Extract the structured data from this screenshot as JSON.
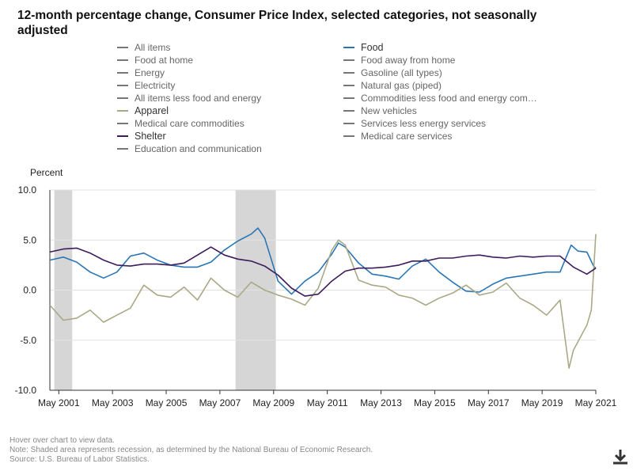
{
  "title": "12-month percentage change, Consumer Price Index, selected categories, not seasonally adjusted",
  "legend": {
    "left": [
      {
        "label": "All items",
        "active": false
      },
      {
        "label": "Food at home",
        "active": false
      },
      {
        "label": "Energy",
        "active": false
      },
      {
        "label": "Electricity",
        "active": false
      },
      {
        "label": "All items less food and energy",
        "active": false
      },
      {
        "label": "Apparel",
        "active": true,
        "color": "#a9a986"
      },
      {
        "label": "Medical care commodities",
        "active": false
      },
      {
        "label": "Shelter",
        "active": true,
        "color": "#3d1b5c"
      },
      {
        "label": "Education and communication",
        "active": false
      }
    ],
    "right": [
      {
        "label": "Food",
        "active": true,
        "color": "#2a76b5"
      },
      {
        "label": "Food away from home",
        "active": false
      },
      {
        "label": "Gasoline (all types)",
        "active": false
      },
      {
        "label": "Natural gas (piped)",
        "active": false
      },
      {
        "label": "Commodities less food and energy com…",
        "active": false
      },
      {
        "label": "New vehicles",
        "active": false
      },
      {
        "label": "Services less energy services",
        "active": false
      },
      {
        "label": "Medical care services",
        "active": false
      }
    ]
  },
  "footnotes": {
    "hover": "Hover over chart to view data.",
    "note": "Note: Shaded area represents recession, as determined by the National Bureau of Economic Research.",
    "source": "Source: U.S. Bureau of Labor Statistics."
  },
  "icons": {
    "download": "download-icon"
  },
  "chart_data": {
    "type": "line",
    "ylabel": "Percent",
    "ylim": [
      -10,
      10
    ],
    "yticks": [
      10.0,
      5.0,
      0.0,
      -5.0,
      -10.0
    ],
    "ytick_labels": [
      "10.0",
      "5.0",
      "0.0",
      "-5.0",
      "-10.0"
    ],
    "xlim": [
      "2001-01",
      "2021-05"
    ],
    "xticks": [
      "2001-05",
      "2003-05",
      "2005-05",
      "2007-05",
      "2009-05",
      "2011-05",
      "2013-05",
      "2015-05",
      "2017-05",
      "2019-05",
      "2021-05"
    ],
    "xtick_labels": [
      "May 2001",
      "May 2003",
      "May 2005",
      "May 2007",
      "May 2009",
      "May 2011",
      "May 2013",
      "May 2015",
      "May 2017",
      "May 2019",
      "May 2021"
    ],
    "recessions": [
      [
        "2001-03",
        "2001-11"
      ],
      [
        "2007-12",
        "2009-06"
      ]
    ],
    "grid": "horizontal",
    "series": [
      {
        "name": "Food",
        "color": "#2a76b5",
        "x": [
          "2001-01",
          "2001-07",
          "2002-01",
          "2002-07",
          "2003-01",
          "2003-07",
          "2004-01",
          "2004-07",
          "2005-01",
          "2005-07",
          "2006-01",
          "2006-07",
          "2007-01",
          "2007-07",
          "2008-01",
          "2008-07",
          "2008-10",
          "2009-01",
          "2009-07",
          "2010-01",
          "2010-07",
          "2011-01",
          "2011-07",
          "2011-10",
          "2012-01",
          "2012-07",
          "2013-01",
          "2013-07",
          "2014-01",
          "2014-07",
          "2015-01",
          "2015-07",
          "2016-01",
          "2016-07",
          "2017-01",
          "2017-07",
          "2018-01",
          "2018-07",
          "2019-01",
          "2019-07",
          "2020-01",
          "2020-06",
          "2020-09",
          "2021-01",
          "2021-04",
          "2021-05"
        ],
        "y": [
          3.0,
          3.3,
          2.8,
          1.8,
          1.2,
          1.8,
          3.4,
          3.7,
          3.0,
          2.5,
          2.3,
          2.3,
          2.8,
          4.0,
          4.9,
          5.6,
          6.2,
          5.2,
          0.9,
          -0.4,
          0.9,
          1.8,
          3.6,
          4.7,
          4.3,
          2.7,
          1.6,
          1.4,
          1.1,
          2.4,
          3.1,
          1.8,
          0.8,
          -0.1,
          -0.2,
          0.6,
          1.2,
          1.4,
          1.6,
          1.8,
          1.8,
          4.5,
          3.9,
          3.8,
          2.4,
          2.2
        ]
      },
      {
        "name": "Apparel",
        "color": "#a9a986",
        "x": [
          "2001-01",
          "2001-07",
          "2002-01",
          "2002-07",
          "2003-01",
          "2003-07",
          "2004-01",
          "2004-07",
          "2005-01",
          "2005-07",
          "2006-01",
          "2006-07",
          "2007-01",
          "2007-07",
          "2008-01",
          "2008-07",
          "2009-01",
          "2009-07",
          "2010-01",
          "2010-07",
          "2011-01",
          "2011-07",
          "2011-10",
          "2012-01",
          "2012-07",
          "2013-01",
          "2013-07",
          "2014-01",
          "2014-07",
          "2015-01",
          "2015-07",
          "2016-01",
          "2016-07",
          "2017-01",
          "2017-07",
          "2018-01",
          "2018-07",
          "2019-01",
          "2019-07",
          "2020-01",
          "2020-05",
          "2020-07",
          "2021-01",
          "2021-03",
          "2021-05"
        ],
        "y": [
          -1.5,
          -3.0,
          -2.8,
          -2.0,
          -3.2,
          -2.5,
          -1.8,
          0.5,
          -0.5,
          -0.7,
          0.3,
          -1.0,
          1.2,
          0.0,
          -0.7,
          0.8,
          0.0,
          -0.5,
          -0.9,
          -1.5,
          0.2,
          4.0,
          5.0,
          4.5,
          1.0,
          0.5,
          0.3,
          -0.5,
          -0.8,
          -1.5,
          -0.8,
          -0.3,
          0.5,
          -0.5,
          -0.2,
          0.7,
          -0.8,
          -1.5,
          -2.5,
          -1.0,
          -7.8,
          -6.0,
          -3.5,
          -2.0,
          5.6
        ]
      },
      {
        "name": "Shelter",
        "color": "#3d1b5c",
        "x": [
          "2001-01",
          "2001-07",
          "2002-01",
          "2002-07",
          "2003-01",
          "2003-07",
          "2004-01",
          "2004-07",
          "2005-01",
          "2005-07",
          "2006-01",
          "2006-07",
          "2007-01",
          "2007-07",
          "2008-01",
          "2008-07",
          "2009-01",
          "2009-07",
          "2010-01",
          "2010-07",
          "2011-01",
          "2011-07",
          "2012-01",
          "2012-07",
          "2013-01",
          "2013-07",
          "2014-01",
          "2014-07",
          "2015-01",
          "2015-07",
          "2016-01",
          "2016-07",
          "2017-01",
          "2017-07",
          "2018-01",
          "2018-07",
          "2019-01",
          "2019-07",
          "2020-01",
          "2020-07",
          "2021-01",
          "2021-05"
        ],
        "y": [
          3.8,
          4.1,
          4.2,
          3.7,
          3.0,
          2.5,
          2.4,
          2.6,
          2.6,
          2.5,
          2.7,
          3.5,
          4.3,
          3.5,
          3.1,
          2.9,
          2.4,
          1.5,
          0.2,
          -0.6,
          -0.4,
          0.9,
          1.9,
          2.2,
          2.2,
          2.3,
          2.5,
          2.9,
          2.9,
          3.2,
          3.2,
          3.4,
          3.5,
          3.3,
          3.2,
          3.4,
          3.3,
          3.4,
          3.4,
          2.3,
          1.6,
          2.2
        ]
      }
    ]
  }
}
